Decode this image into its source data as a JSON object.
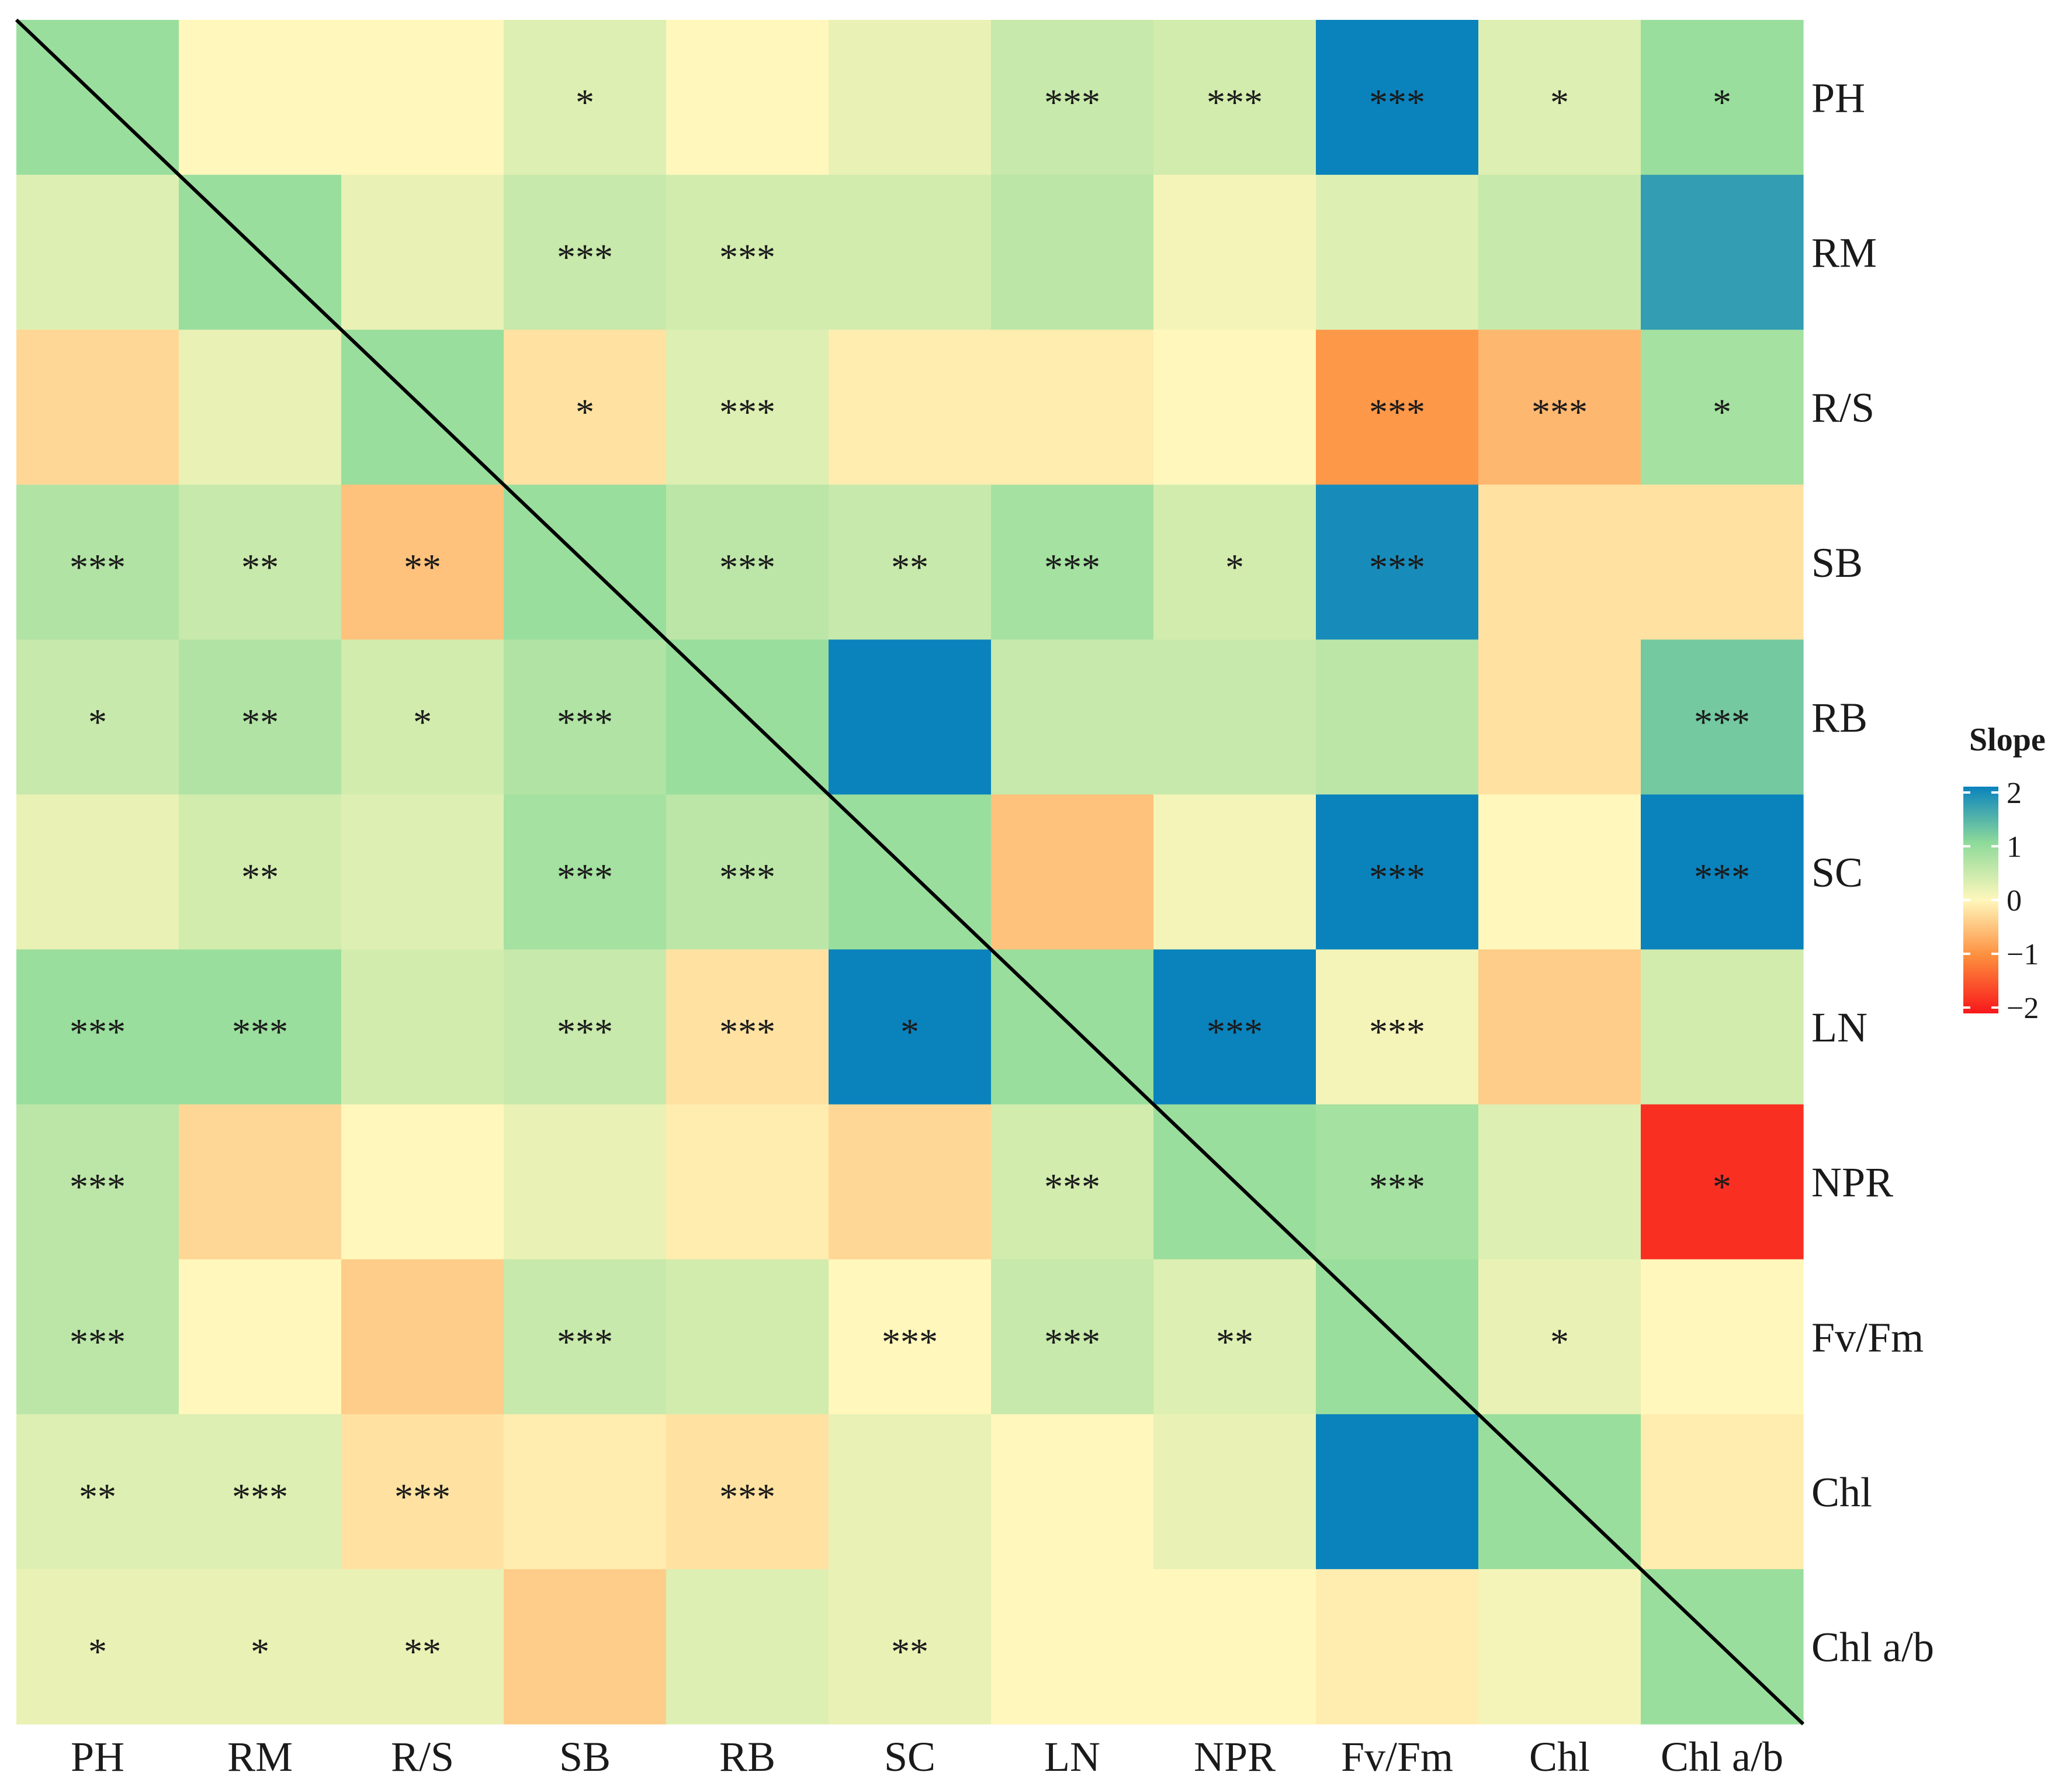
{
  "chart_data": {
    "type": "heatmap",
    "title": "",
    "xlabel": "",
    "ylabel": "",
    "row_labels": [
      "PH",
      "RM",
      "R/S",
      "SB",
      "RB",
      "SC",
      "LN",
      "NPR",
      "Fv/Fm",
      "Chl",
      "Chl a/b"
    ],
    "col_labels": [
      "PH",
      "RM",
      "R/S",
      "SB",
      "RB",
      "SC",
      "LN",
      "NPR",
      "Fv/Fm",
      "Chl",
      "Chl a/b"
    ],
    "values": [
      [
        0.9,
        0.0,
        0.0,
        0.3,
        0.0,
        0.2,
        0.5,
        0.4,
        2.0,
        0.3,
        0.9
      ],
      [
        0.3,
        0.9,
        0.2,
        0.5,
        0.4,
        0.4,
        0.6,
        0.1,
        0.3,
        0.5,
        1.7
      ],
      [
        -0.3,
        0.2,
        0.9,
        -0.2,
        0.3,
        -0.1,
        -0.1,
        0.0,
        -0.9,
        -0.6,
        0.8
      ],
      [
        0.7,
        0.5,
        -0.5,
        0.9,
        0.6,
        0.5,
        0.8,
        0.4,
        1.9,
        -0.2,
        -0.2
      ],
      [
        0.5,
        0.7,
        0.4,
        0.7,
        0.9,
        2.0,
        0.5,
        0.5,
        0.6,
        -0.2,
        1.2
      ],
      [
        0.2,
        0.4,
        0.3,
        0.8,
        0.6,
        0.9,
        -0.5,
        0.1,
        2.0,
        0.0,
        2.0
      ],
      [
        0.9,
        0.9,
        0.4,
        0.5,
        -0.2,
        2.0,
        0.9,
        2.0,
        0.1,
        -0.4,
        0.4
      ],
      [
        0.6,
        -0.3,
        0.0,
        0.2,
        -0.1,
        -0.3,
        0.4,
        0.9,
        0.8,
        0.3,
        -1.8
      ],
      [
        0.6,
        0.0,
        -0.4,
        0.5,
        0.4,
        0.0,
        0.5,
        0.3,
        0.9,
        0.2,
        0.0
      ],
      [
        0.3,
        0.3,
        -0.2,
        -0.1,
        -0.2,
        0.2,
        0.0,
        0.2,
        2.0,
        0.9,
        -0.1
      ],
      [
        0.2,
        0.2,
        0.2,
        -0.4,
        0.3,
        0.2,
        0.0,
        0.0,
        -0.1,
        0.1,
        0.9
      ]
    ],
    "significance": [
      [
        "",
        "",
        "",
        "*",
        "",
        "",
        "***",
        "***",
        "***",
        "*",
        "*"
      ],
      [
        "",
        "",
        "",
        "***",
        "***",
        "",
        "",
        "",
        "",
        "",
        ""
      ],
      [
        "",
        "",
        "",
        "*",
        "***",
        "",
        "",
        "",
        "***",
        "***",
        "*"
      ],
      [
        "***",
        "**",
        "**",
        "",
        "***",
        "**",
        "***",
        "*",
        "***",
        "",
        ""
      ],
      [
        "*",
        "**",
        "*",
        "***",
        "",
        "",
        "",
        "",
        "",
        "",
        "***"
      ],
      [
        "",
        "**",
        "",
        "***",
        "***",
        "",
        "",
        "",
        "***",
        "",
        "***"
      ],
      [
        "***",
        "***",
        "",
        "***",
        "***",
        "*",
        "",
        "***",
        "***",
        "",
        ""
      ],
      [
        "***",
        "",
        "",
        "",
        "",
        "",
        "***",
        "",
        "***",
        "",
        "*"
      ],
      [
        "***",
        "",
        "",
        "***",
        "",
        "***",
        "***",
        "**",
        "",
        "*",
        ""
      ],
      [
        "**",
        "***",
        "***",
        "",
        "***",
        "",
        "",
        "",
        "",
        "",
        ""
      ],
      [
        "*",
        "*",
        "**",
        "",
        "",
        "**",
        "",
        "",
        "",
        "",
        ""
      ]
    ],
    "diagonal_line": true,
    "legend": {
      "title": "Slope",
      "position": "right",
      "ticks": [
        "2",
        "1",
        "0",
        "−1",
        "−2"
      ],
      "tick_values": [
        2,
        1,
        0,
        -1,
        -2
      ],
      "range": [
        -2,
        2
      ],
      "colormap": [
        "#f8171b",
        "#fd8d3c",
        "#fff7bc",
        "#8fdb9a",
        "#0a83bd"
      ]
    }
  }
}
